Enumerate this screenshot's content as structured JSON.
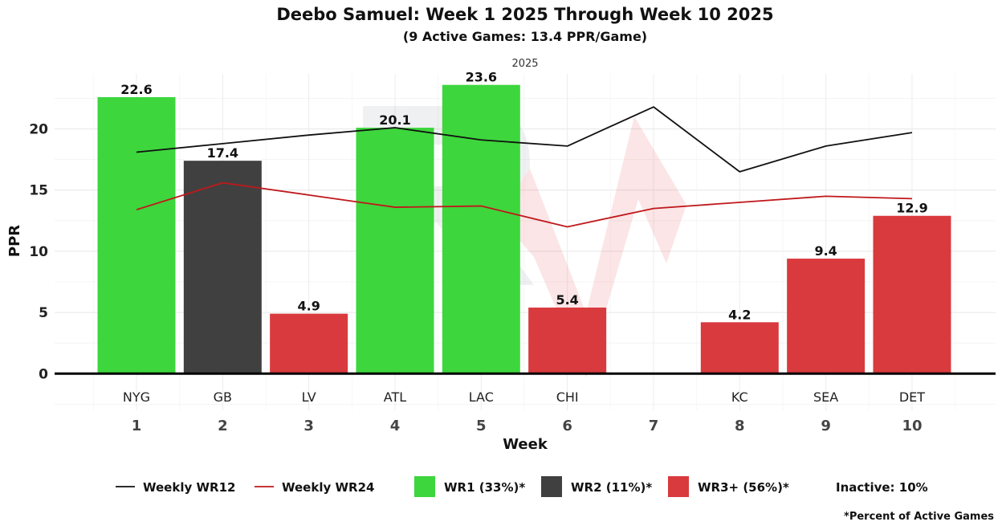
{
  "chart_data": {
    "type": "bar",
    "title": "Deebo Samuel: Week 1 2025 Through Week 10 2025",
    "subtitle": "(9 Active Games: 13.4 PPR/Game)",
    "facet_label": "2025",
    "xlabel": "Week",
    "ylabel": "PPR",
    "ylim": [
      -3.0,
      24.5
    ],
    "yticks": [
      0,
      5,
      10,
      15,
      20
    ],
    "weeks": [
      "1",
      "2",
      "3",
      "4",
      "5",
      "6",
      "7",
      "8",
      "9",
      "10"
    ],
    "opponents": [
      "NYG",
      "GB",
      "LV",
      "ATL",
      "LAC",
      "CHI",
      "",
      "KC",
      "SEA",
      "DET"
    ],
    "values": [
      22.6,
      17.4,
      4.9,
      20.1,
      23.6,
      5.4,
      null,
      4.2,
      9.4,
      12.9
    ],
    "value_labels": [
      "22.6",
      "17.4",
      "4.9",
      "20.1",
      "23.6",
      "5.4",
      "",
      "4.2",
      "9.4",
      "12.9"
    ],
    "tiers": [
      "WR1",
      "WR2",
      "WR3+",
      "WR1",
      "WR1",
      "WR3+",
      null,
      "WR3+",
      "WR3+",
      "WR3+"
    ],
    "series": [
      {
        "name": "Weekly WR12",
        "color": "#111111",
        "values": [
          18.1,
          18.8,
          19.5,
          20.1,
          19.1,
          18.6,
          21.8,
          16.5,
          18.6,
          19.7
        ]
      },
      {
        "name": "Weekly WR24",
        "color": "#c0181c",
        "values": [
          13.4,
          15.6,
          14.6,
          13.6,
          13.7,
          12.0,
          13.5,
          14.0,
          14.5,
          14.3
        ]
      }
    ],
    "tier_colors": {
      "WR1": "#3dd63d",
      "WR2": "#404040",
      "WR3+": "#d93a3e"
    },
    "legend": {
      "wr12": "Weekly WR12",
      "wr24": "Weekly WR24",
      "wr1": "WR1 (33%)*",
      "wr2": "WR2 (11%)*",
      "wr3": "WR3+ (56%)*",
      "inactive": "Inactive: 10%"
    },
    "footnote": "*Percent of Active Games"
  }
}
